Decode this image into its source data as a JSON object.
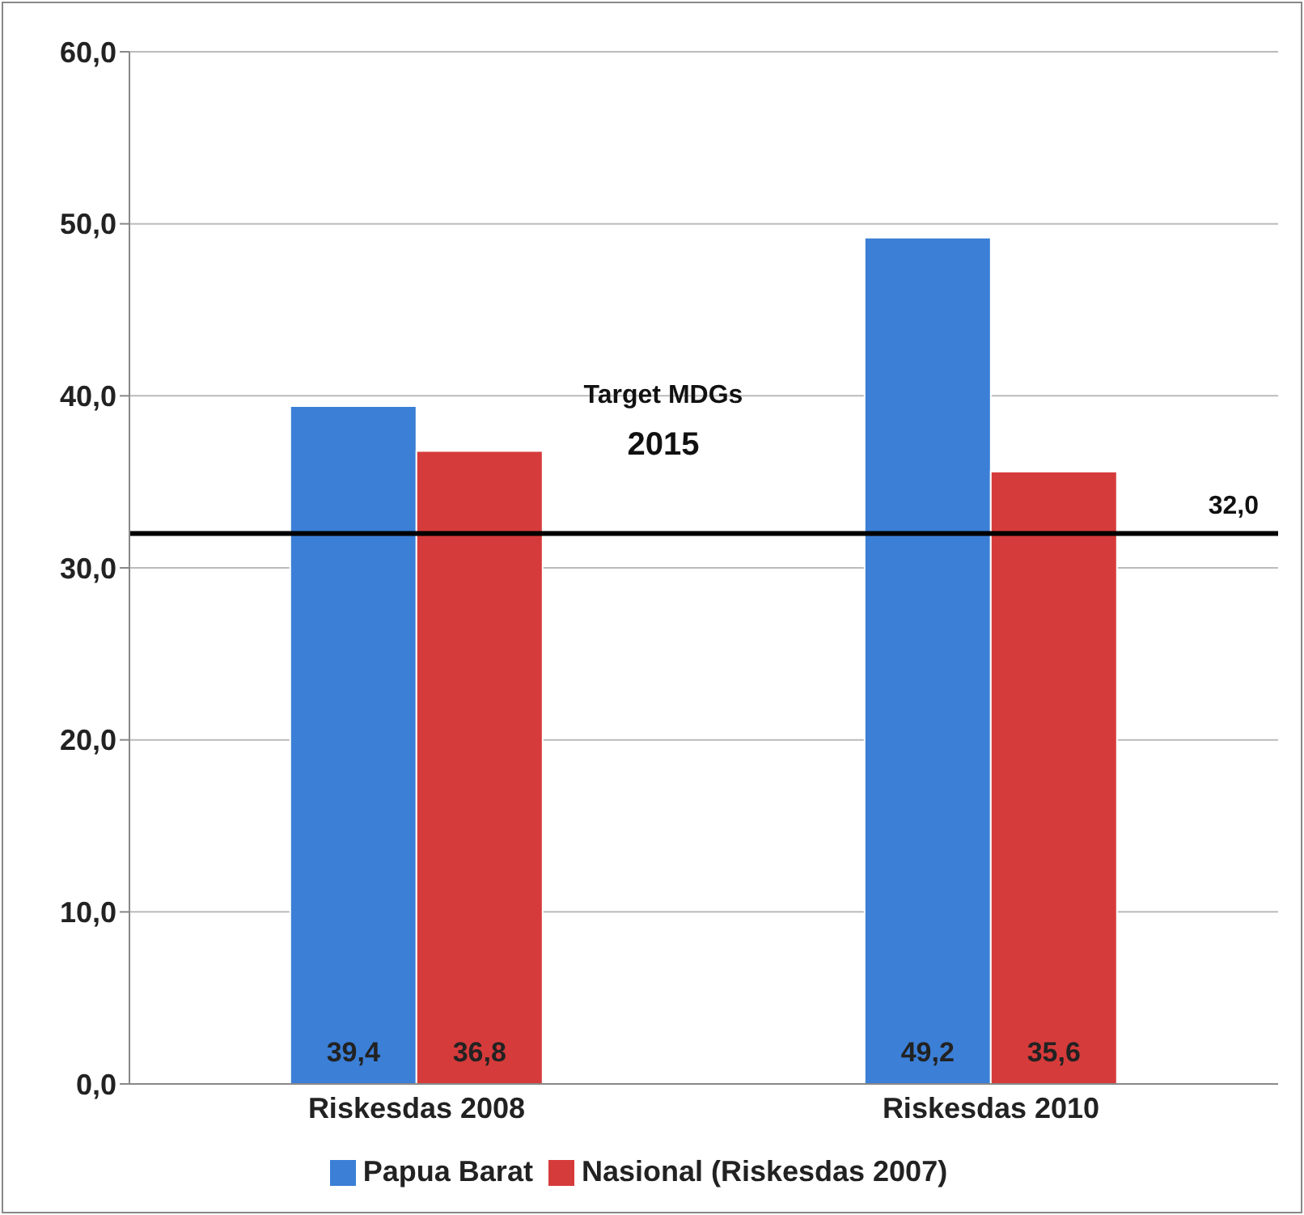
{
  "chart_data": {
    "type": "bar",
    "categories": [
      "Riskesdas 2008",
      "Riskesdas 2010"
    ],
    "series": [
      {
        "name": "Papua Barat",
        "color": "#3b7fd6",
        "values": [
          39.4,
          49.2
        ],
        "value_labels": [
          "39,4",
          "49,2"
        ]
      },
      {
        "name": "Nasional (Riskesdas 2007)",
        "color": "#d63b3b",
        "values": [
          36.8,
          35.6
        ],
        "value_labels": [
          "36,8",
          "35,6"
        ]
      }
    ],
    "ylim": [
      0,
      60
    ],
    "yticks": [
      {
        "value": 0,
        "label": "0,0"
      },
      {
        "value": 10,
        "label": "10,0"
      },
      {
        "value": 20,
        "label": "20,0"
      },
      {
        "value": 30,
        "label": "30,0"
      },
      {
        "value": 40,
        "label": "40,0"
      },
      {
        "value": 50,
        "label": "50,0"
      },
      {
        "value": 60,
        "label": "60,0"
      }
    ],
    "ref_lines": [
      {
        "axis": "y",
        "value": 32,
        "label": "32,0",
        "color": "#000000"
      }
    ],
    "annotations": [
      "Target MDGs",
      "2015"
    ],
    "grid": "y",
    "legend": "bottom"
  }
}
